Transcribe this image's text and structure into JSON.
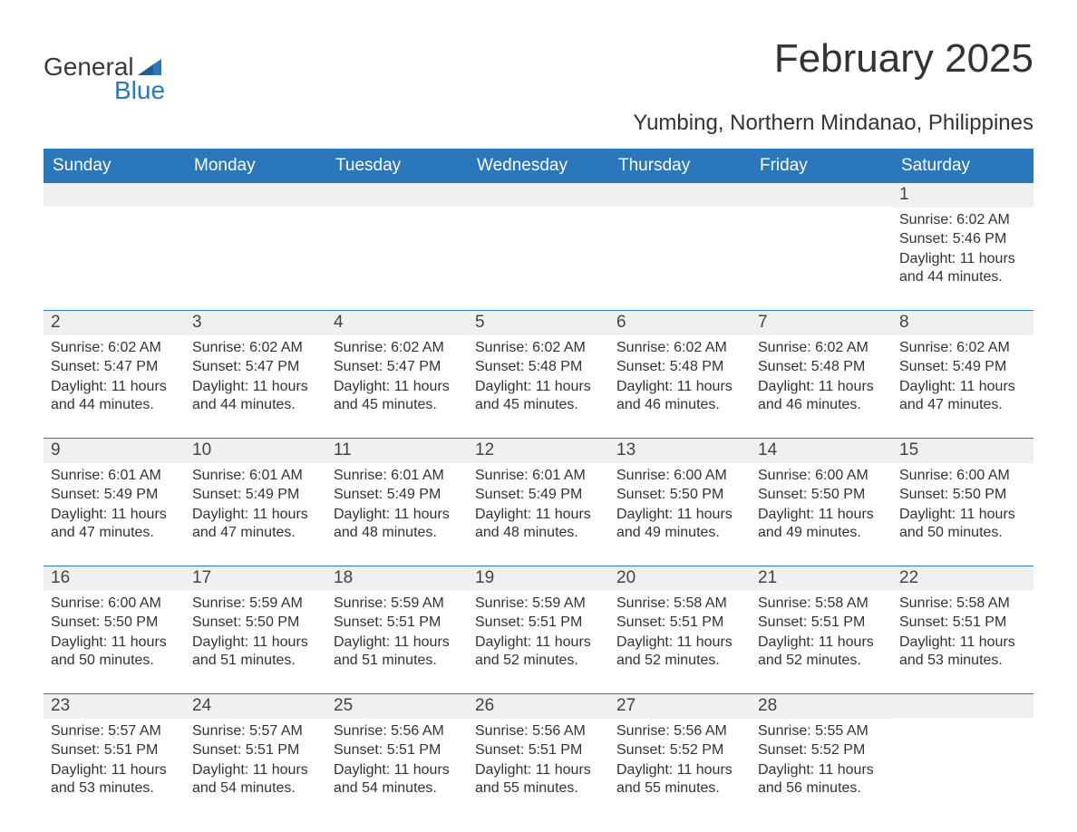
{
  "brand": {
    "general": "General",
    "blue": "Blue"
  },
  "title": "February 2025",
  "subtitle": "Yumbing, Northern Mindanao, Philippines",
  "colors": {
    "accent": "#2a77bb",
    "header_text": "#ffffff",
    "daynum_bg": "#f0f0f0",
    "body_text": "#333333",
    "background": "#ffffff"
  },
  "font": {
    "family": "Arial",
    "title_size_pt": 33,
    "subtitle_size_pt": 18,
    "header_size_pt": 14,
    "cell_size_pt": 12
  },
  "day_names": [
    "Sunday",
    "Monday",
    "Tuesday",
    "Wednesday",
    "Thursday",
    "Friday",
    "Saturday"
  ],
  "weeks": [
    [
      {
        "num": "",
        "sunrise": "",
        "sunset": "",
        "daylight": ""
      },
      {
        "num": "",
        "sunrise": "",
        "sunset": "",
        "daylight": ""
      },
      {
        "num": "",
        "sunrise": "",
        "sunset": "",
        "daylight": ""
      },
      {
        "num": "",
        "sunrise": "",
        "sunset": "",
        "daylight": ""
      },
      {
        "num": "",
        "sunrise": "",
        "sunset": "",
        "daylight": ""
      },
      {
        "num": "",
        "sunrise": "",
        "sunset": "",
        "daylight": ""
      },
      {
        "num": "1",
        "sunrise": "Sunrise: 6:02 AM",
        "sunset": "Sunset: 5:46 PM",
        "daylight": "Daylight: 11 hours and 44 minutes."
      }
    ],
    [
      {
        "num": "2",
        "sunrise": "Sunrise: 6:02 AM",
        "sunset": "Sunset: 5:47 PM",
        "daylight": "Daylight: 11 hours and 44 minutes."
      },
      {
        "num": "3",
        "sunrise": "Sunrise: 6:02 AM",
        "sunset": "Sunset: 5:47 PM",
        "daylight": "Daylight: 11 hours and 44 minutes."
      },
      {
        "num": "4",
        "sunrise": "Sunrise: 6:02 AM",
        "sunset": "Sunset: 5:47 PM",
        "daylight": "Daylight: 11 hours and 45 minutes."
      },
      {
        "num": "5",
        "sunrise": "Sunrise: 6:02 AM",
        "sunset": "Sunset: 5:48 PM",
        "daylight": "Daylight: 11 hours and 45 minutes."
      },
      {
        "num": "6",
        "sunrise": "Sunrise: 6:02 AM",
        "sunset": "Sunset: 5:48 PM",
        "daylight": "Daylight: 11 hours and 46 minutes."
      },
      {
        "num": "7",
        "sunrise": "Sunrise: 6:02 AM",
        "sunset": "Sunset: 5:48 PM",
        "daylight": "Daylight: 11 hours and 46 minutes."
      },
      {
        "num": "8",
        "sunrise": "Sunrise: 6:02 AM",
        "sunset": "Sunset: 5:49 PM",
        "daylight": "Daylight: 11 hours and 47 minutes."
      }
    ],
    [
      {
        "num": "9",
        "sunrise": "Sunrise: 6:01 AM",
        "sunset": "Sunset: 5:49 PM",
        "daylight": "Daylight: 11 hours and 47 minutes."
      },
      {
        "num": "10",
        "sunrise": "Sunrise: 6:01 AM",
        "sunset": "Sunset: 5:49 PM",
        "daylight": "Daylight: 11 hours and 47 minutes."
      },
      {
        "num": "11",
        "sunrise": "Sunrise: 6:01 AM",
        "sunset": "Sunset: 5:49 PM",
        "daylight": "Daylight: 11 hours and 48 minutes."
      },
      {
        "num": "12",
        "sunrise": "Sunrise: 6:01 AM",
        "sunset": "Sunset: 5:49 PM",
        "daylight": "Daylight: 11 hours and 48 minutes."
      },
      {
        "num": "13",
        "sunrise": "Sunrise: 6:00 AM",
        "sunset": "Sunset: 5:50 PM",
        "daylight": "Daylight: 11 hours and 49 minutes."
      },
      {
        "num": "14",
        "sunrise": "Sunrise: 6:00 AM",
        "sunset": "Sunset: 5:50 PM",
        "daylight": "Daylight: 11 hours and 49 minutes."
      },
      {
        "num": "15",
        "sunrise": "Sunrise: 6:00 AM",
        "sunset": "Sunset: 5:50 PM",
        "daylight": "Daylight: 11 hours and 50 minutes."
      }
    ],
    [
      {
        "num": "16",
        "sunrise": "Sunrise: 6:00 AM",
        "sunset": "Sunset: 5:50 PM",
        "daylight": "Daylight: 11 hours and 50 minutes."
      },
      {
        "num": "17",
        "sunrise": "Sunrise: 5:59 AM",
        "sunset": "Sunset: 5:50 PM",
        "daylight": "Daylight: 11 hours and 51 minutes."
      },
      {
        "num": "18",
        "sunrise": "Sunrise: 5:59 AM",
        "sunset": "Sunset: 5:51 PM",
        "daylight": "Daylight: 11 hours and 51 minutes."
      },
      {
        "num": "19",
        "sunrise": "Sunrise: 5:59 AM",
        "sunset": "Sunset: 5:51 PM",
        "daylight": "Daylight: 11 hours and 52 minutes."
      },
      {
        "num": "20",
        "sunrise": "Sunrise: 5:58 AM",
        "sunset": "Sunset: 5:51 PM",
        "daylight": "Daylight: 11 hours and 52 minutes."
      },
      {
        "num": "21",
        "sunrise": "Sunrise: 5:58 AM",
        "sunset": "Sunset: 5:51 PM",
        "daylight": "Daylight: 11 hours and 52 minutes."
      },
      {
        "num": "22",
        "sunrise": "Sunrise: 5:58 AM",
        "sunset": "Sunset: 5:51 PM",
        "daylight": "Daylight: 11 hours and 53 minutes."
      }
    ],
    [
      {
        "num": "23",
        "sunrise": "Sunrise: 5:57 AM",
        "sunset": "Sunset: 5:51 PM",
        "daylight": "Daylight: 11 hours and 53 minutes."
      },
      {
        "num": "24",
        "sunrise": "Sunrise: 5:57 AM",
        "sunset": "Sunset: 5:51 PM",
        "daylight": "Daylight: 11 hours and 54 minutes."
      },
      {
        "num": "25",
        "sunrise": "Sunrise: 5:56 AM",
        "sunset": "Sunset: 5:51 PM",
        "daylight": "Daylight: 11 hours and 54 minutes."
      },
      {
        "num": "26",
        "sunrise": "Sunrise: 5:56 AM",
        "sunset": "Sunset: 5:51 PM",
        "daylight": "Daylight: 11 hours and 55 minutes."
      },
      {
        "num": "27",
        "sunrise": "Sunrise: 5:56 AM",
        "sunset": "Sunset: 5:52 PM",
        "daylight": "Daylight: 11 hours and 55 minutes."
      },
      {
        "num": "28",
        "sunrise": "Sunrise: 5:55 AM",
        "sunset": "Sunset: 5:52 PM",
        "daylight": "Daylight: 11 hours and 56 minutes."
      },
      {
        "num": "",
        "sunrise": "",
        "sunset": "",
        "daylight": ""
      }
    ]
  ]
}
